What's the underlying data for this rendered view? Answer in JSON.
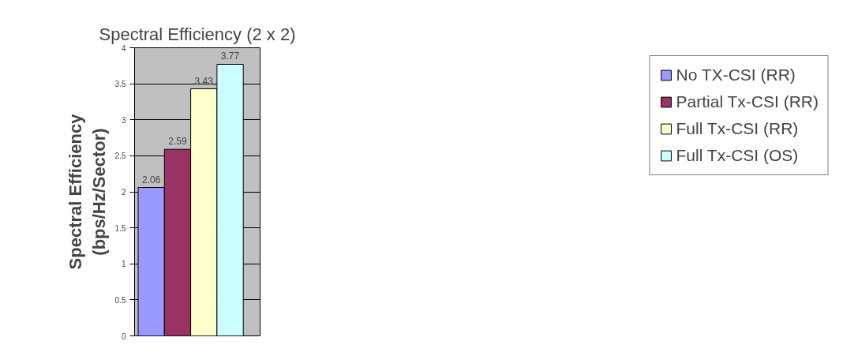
{
  "chart_data": {
    "type": "bar",
    "title": "Spectral Efficiency (2 x 2)",
    "ylabel": "Spectral Efficiency\n(bps/Hz/Sector)",
    "categories": [
      null
    ],
    "series": [
      {
        "name": "No TX-CSI (RR)",
        "color": "#9999ff",
        "values": [
          2.06
        ]
      },
      {
        "name": "Partial Tx-CSI (RR)",
        "color": "#993366",
        "values": [
          2.59
        ]
      },
      {
        "name": "Full Tx-CSI (RR)",
        "color": "#ffffcc",
        "values": [
          3.43
        ]
      },
      {
        "name": "Full Tx-CSI (OS)",
        "color": "#ccffff",
        "values": [
          3.77
        ]
      }
    ],
    "ylim": [
      0,
      4
    ],
    "yticks": [
      0,
      0.5,
      1,
      1.5,
      2,
      2.5,
      3,
      3.5,
      4
    ],
    "grid": "y",
    "legend": "right",
    "data_labels": true
  }
}
